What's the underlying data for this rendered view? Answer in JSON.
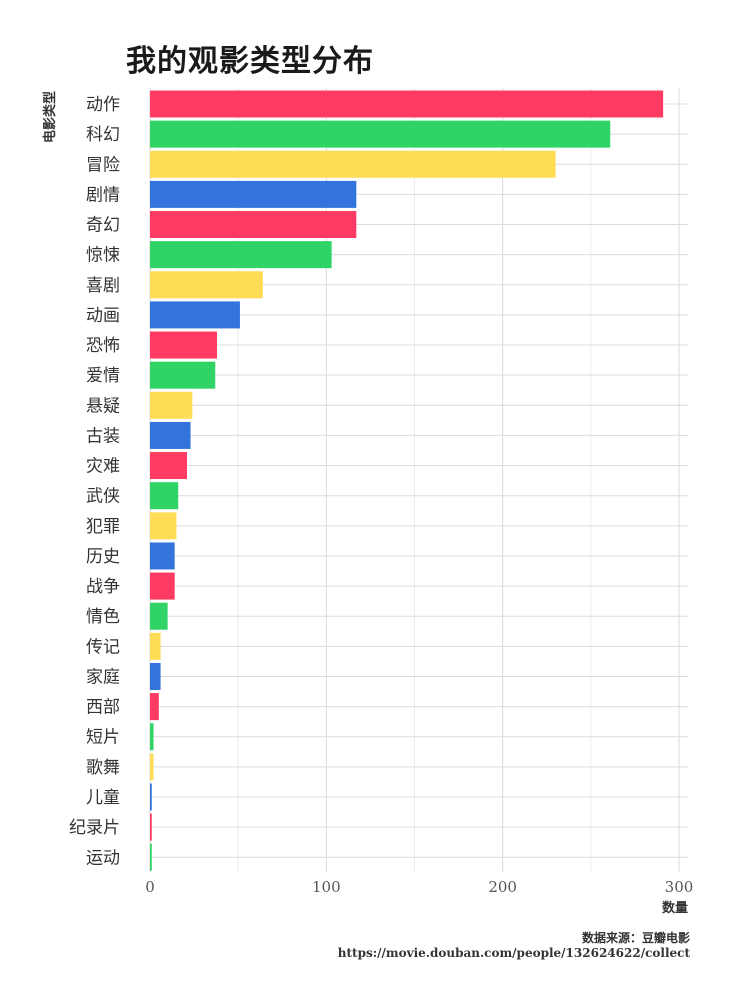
{
  "chart_data": {
    "type": "bar",
    "orientation": "horizontal",
    "title": "我的观影类型分布",
    "xlabel": "数量",
    "ylabel": "电影类型",
    "xlim": [
      0,
      300
    ],
    "x_ticks": [
      0,
      100,
      200,
      300
    ],
    "grid": true,
    "legend": "none",
    "categories": [
      "动作",
      "科幻",
      "冒险",
      "剧情",
      "奇幻",
      "惊悚",
      "喜剧",
      "动画",
      "恐怖",
      "爱情",
      "悬疑",
      "古装",
      "灾难",
      "武侠",
      "犯罪",
      "历史",
      "战争",
      "情色",
      "传记",
      "家庭",
      "西部",
      "短片",
      "歌舞",
      "儿童",
      "纪录片",
      "运动"
    ],
    "values": [
      291,
      261,
      230,
      117,
      117,
      103,
      64,
      51,
      38,
      37,
      24,
      23,
      21,
      16,
      15,
      14,
      14,
      10,
      6,
      6,
      5,
      2,
      2,
      1,
      1,
      1
    ],
    "colors": [
      "#ff3b63",
      "#2fd366",
      "#ffdc55",
      "#3374dc"
    ]
  },
  "caption": {
    "line1": "数据来源：豆瓣电影",
    "line2": "https://movie.douban.com/people/132624622/collect"
  }
}
